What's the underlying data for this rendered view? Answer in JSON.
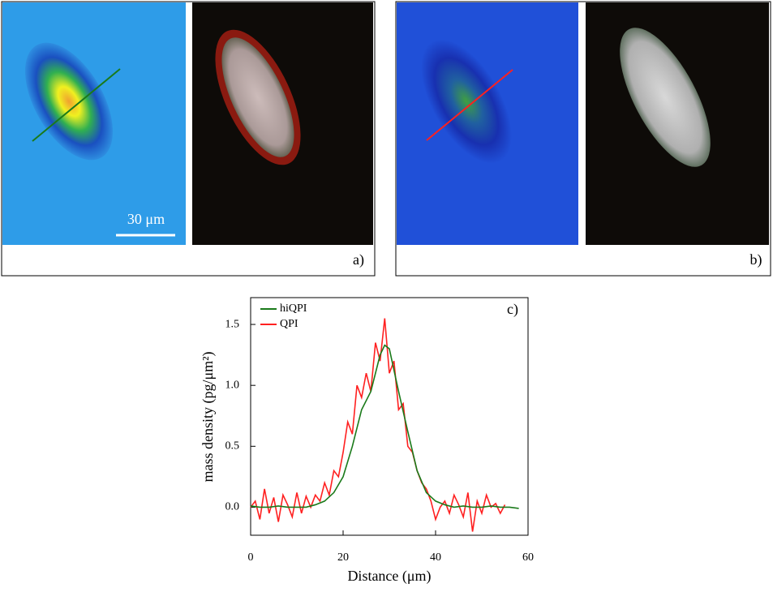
{
  "panels": [
    {
      "label": "a)",
      "scale_bar": "30 μm"
    },
    {
      "label": "b)"
    }
  ],
  "chart_data": {
    "type": "line",
    "panel_label": "c)",
    "xlabel": "Distance (μm)",
    "ylabel": "mass density (pg/μm²)",
    "xlim": [
      0,
      60
    ],
    "ylim": [
      -0.23,
      1.72
    ],
    "xticks": [
      0,
      20,
      40,
      60
    ],
    "yticks": [
      {
        "value": 0,
        "label": "0.0"
      },
      {
        "value": 0.5,
        "label": "0.5"
      },
      {
        "value": 1,
        "label": "1.0"
      },
      {
        "value": 1.5,
        "label": "1.5"
      }
    ],
    "legend": "upper left",
    "series": [
      {
        "name": "hiQPI",
        "color": "#1a7a1a",
        "x": [
          0,
          2,
          4,
          6,
          8,
          10,
          12,
          14,
          16,
          18,
          20,
          22,
          24,
          26,
          28,
          29,
          30,
          32,
          34,
          36,
          38,
          40,
          42,
          44,
          46,
          48,
          50,
          52,
          54,
          56,
          58
        ],
        "values": [
          0.01,
          0.0,
          0.0,
          0.01,
          0.0,
          0.0,
          0.0,
          0.02,
          0.05,
          0.12,
          0.25,
          0.5,
          0.8,
          0.95,
          1.25,
          1.33,
          1.3,
          0.95,
          0.62,
          0.3,
          0.12,
          0.05,
          0.02,
          0.0,
          0.01,
          0.0,
          0.0,
          0.01,
          0.0,
          0.0,
          -0.01
        ]
      },
      {
        "name": "QPI",
        "color": "#ff2020",
        "x": [
          0,
          1,
          2,
          3,
          4,
          5,
          6,
          7,
          8,
          9,
          10,
          11,
          12,
          13,
          14,
          15,
          16,
          17,
          18,
          19,
          20,
          21,
          22,
          23,
          24,
          25,
          26,
          27,
          28,
          29,
          30,
          31,
          32,
          33,
          34,
          35,
          36,
          37,
          38,
          39,
          40,
          41,
          42,
          43,
          44,
          45,
          46,
          47,
          48,
          49,
          50,
          51,
          52,
          53,
          54,
          55
        ],
        "values": [
          0.0,
          0.05,
          -0.1,
          0.15,
          -0.05,
          0.08,
          -0.12,
          0.1,
          0.02,
          -0.08,
          0.12,
          -0.05,
          0.09,
          0.0,
          0.1,
          0.05,
          0.2,
          0.1,
          0.3,
          0.25,
          0.45,
          0.7,
          0.6,
          1.0,
          0.9,
          1.1,
          0.95,
          1.35,
          1.2,
          1.55,
          1.1,
          1.2,
          0.8,
          0.85,
          0.5,
          0.45,
          0.3,
          0.2,
          0.15,
          0.05,
          -0.1,
          0.0,
          0.05,
          -0.05,
          0.1,
          0.02,
          -0.08,
          0.12,
          -0.2,
          0.05,
          -0.05,
          0.1,
          0.0,
          0.03,
          -0.05,
          0.02
        ]
      }
    ]
  }
}
